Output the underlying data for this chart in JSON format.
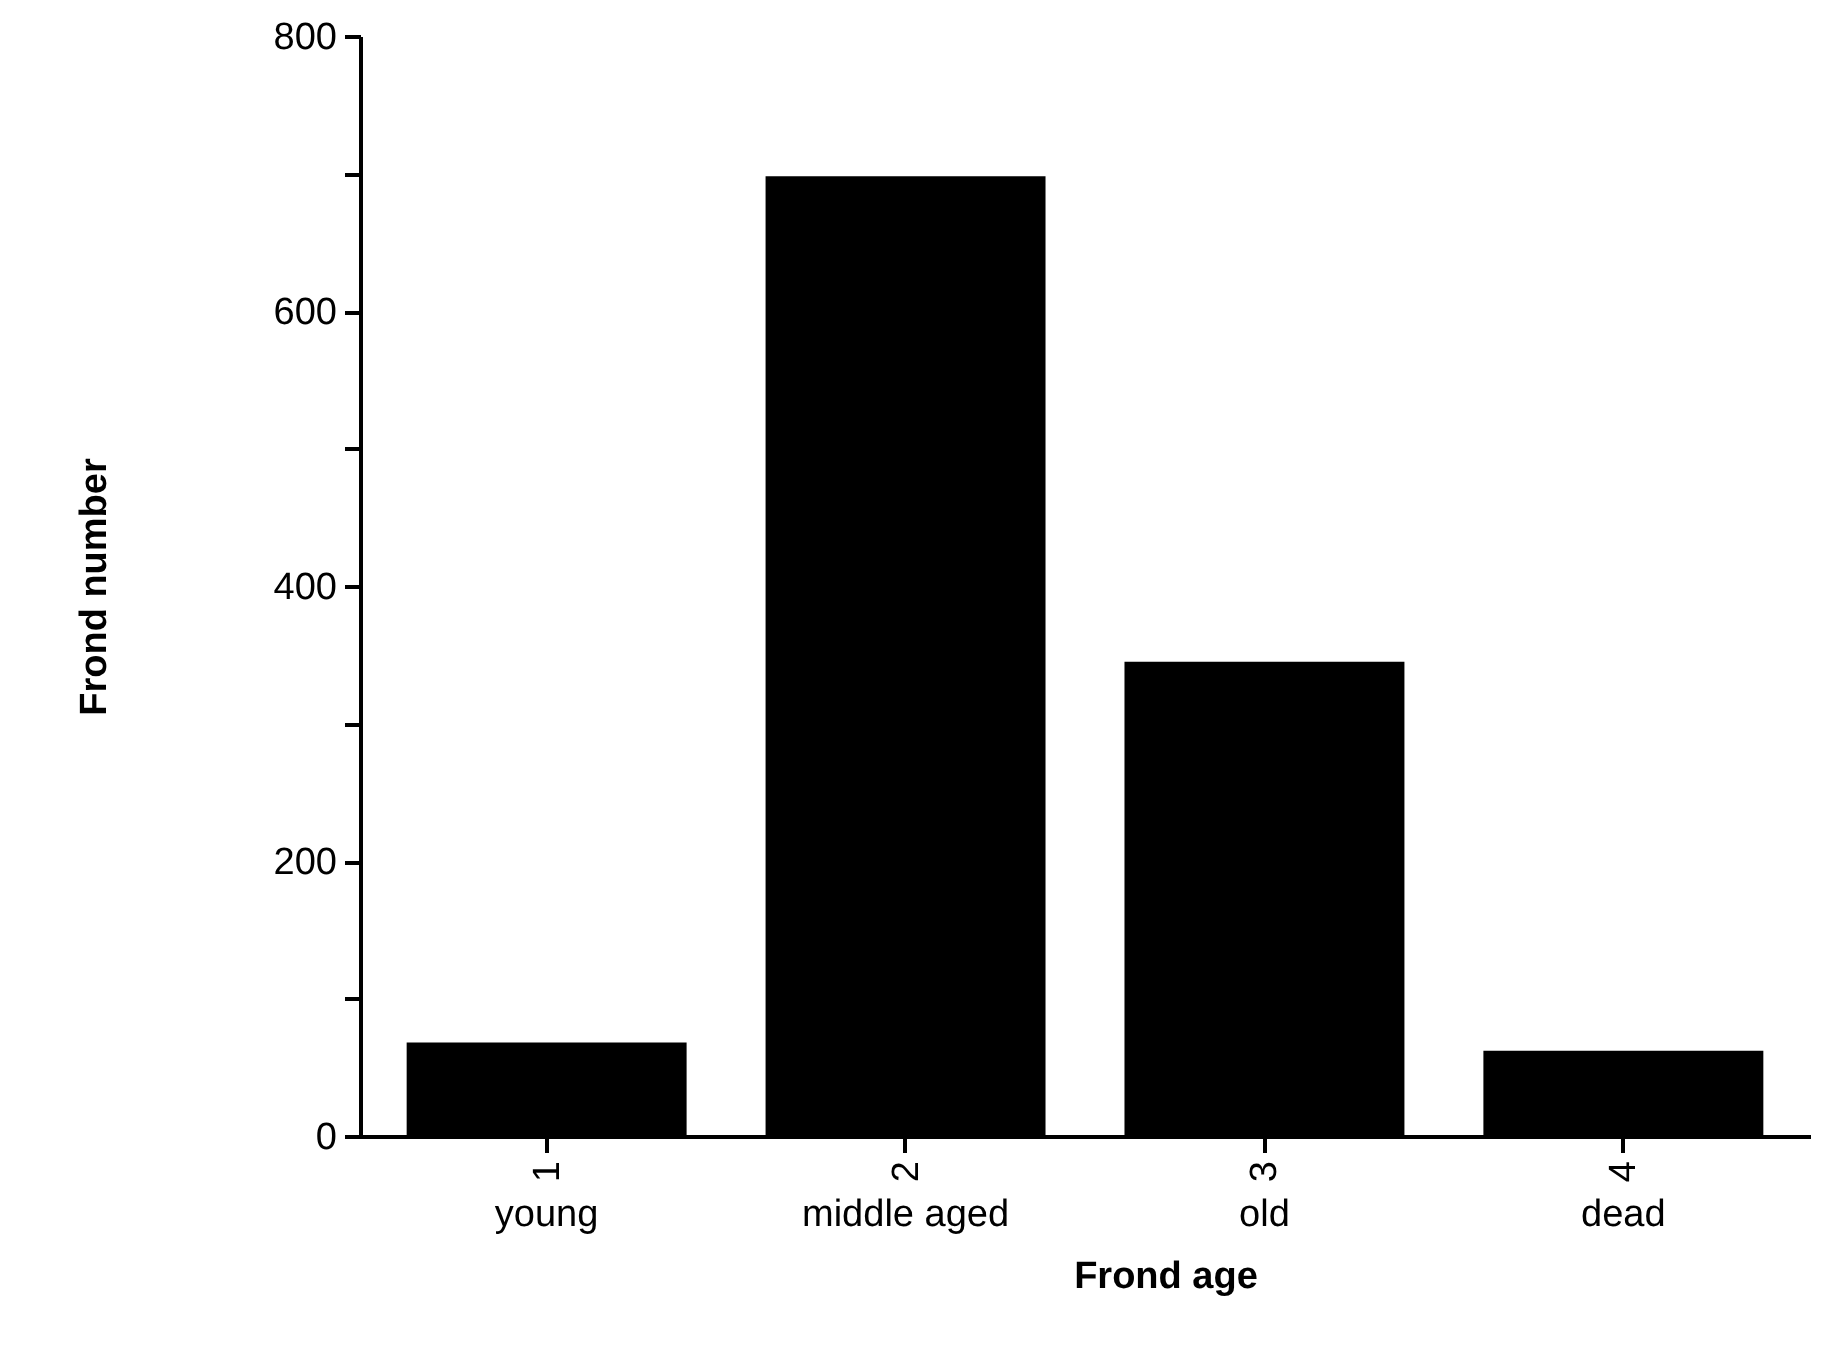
{
  "chart_data": {
    "type": "bar",
    "xlabel": "Frond age",
    "ylabel": "Frond number",
    "categories": [
      "1",
      "2",
      "3",
      "4"
    ],
    "values": [
      68,
      698,
      345,
      62
    ],
    "color": "#000000",
    "ylim": [
      0,
      800
    ],
    "yticks": [
      0,
      {
        "value": 100,
        "label": null
      },
      200,
      {
        "value": 300,
        "label": null
      },
      400,
      {
        "value": 500,
        "label": null
      },
      600,
      {
        "value": 700,
        "label": null
      },
      800
    ],
    "annotations": [
      "young",
      "middle aged",
      "old",
      "dead"
    ],
    "grid": false
  }
}
